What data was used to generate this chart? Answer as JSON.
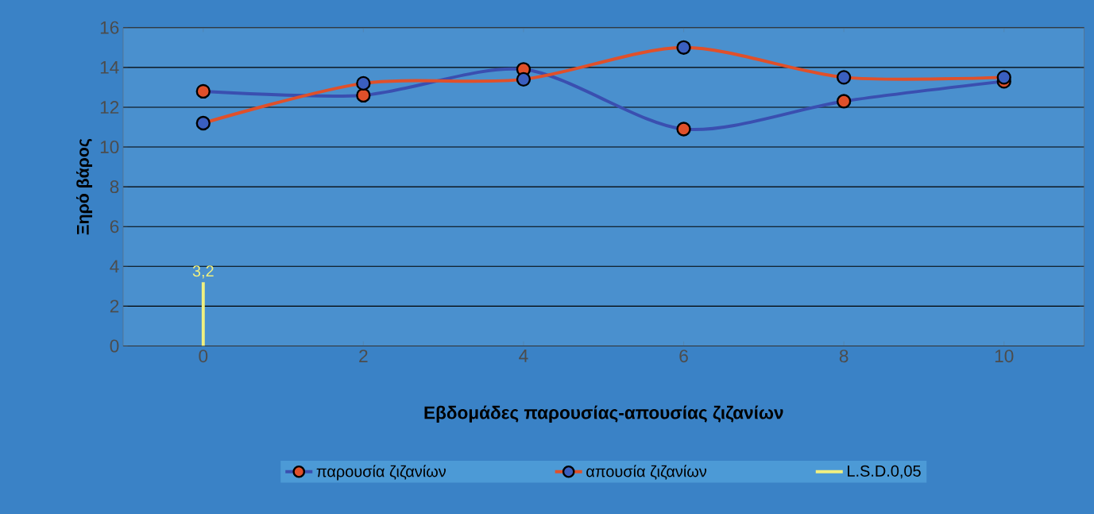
{
  "chart_data": {
    "type": "line",
    "xlabel": "Εβδομάδες παρουσίας-απουσίας ζιζανίων",
    "ylabel": "Ξηρό βάρος",
    "categories": [
      "0",
      "2",
      "4",
      "6",
      "8",
      "10"
    ],
    "series": [
      {
        "name": "παρουσία ζιζανίων",
        "color": "#3a4fb0",
        "colors": [
          "#e0502a",
          "#e0502a",
          "#e0502a",
          "#e0502a",
          "#e0502a",
          "#e0502a"
        ],
        "values": [
          12.8,
          12.6,
          13.9,
          10.9,
          12.3,
          13.3
        ]
      },
      {
        "name": "απουσία ζιζανίων",
        "color": "#e0502a",
        "colors": [
          "#3a5fc0",
          "#3a5fc0",
          "#3a5fc0",
          "#3a5fc0",
          "#3a5fc0",
          "#3a5fc0"
        ],
        "values": [
          11.2,
          13.2,
          13.4,
          15.0,
          13.5,
          13.5
        ]
      },
      {
        "name": "L.S.D.0,05",
        "type": "bar",
        "color": "#f0f080",
        "values": [
          3.2,
          null,
          null,
          null,
          null,
          null
        ],
        "value_labels": [
          "3,2",
          null,
          null,
          null,
          null,
          null
        ]
      }
    ],
    "ylim": [
      0,
      16
    ],
    "yticks": [
      0,
      2,
      4,
      6,
      8,
      10,
      12,
      14,
      16
    ],
    "grid": "y",
    "legend": "bottom",
    "marker": "circle"
  }
}
